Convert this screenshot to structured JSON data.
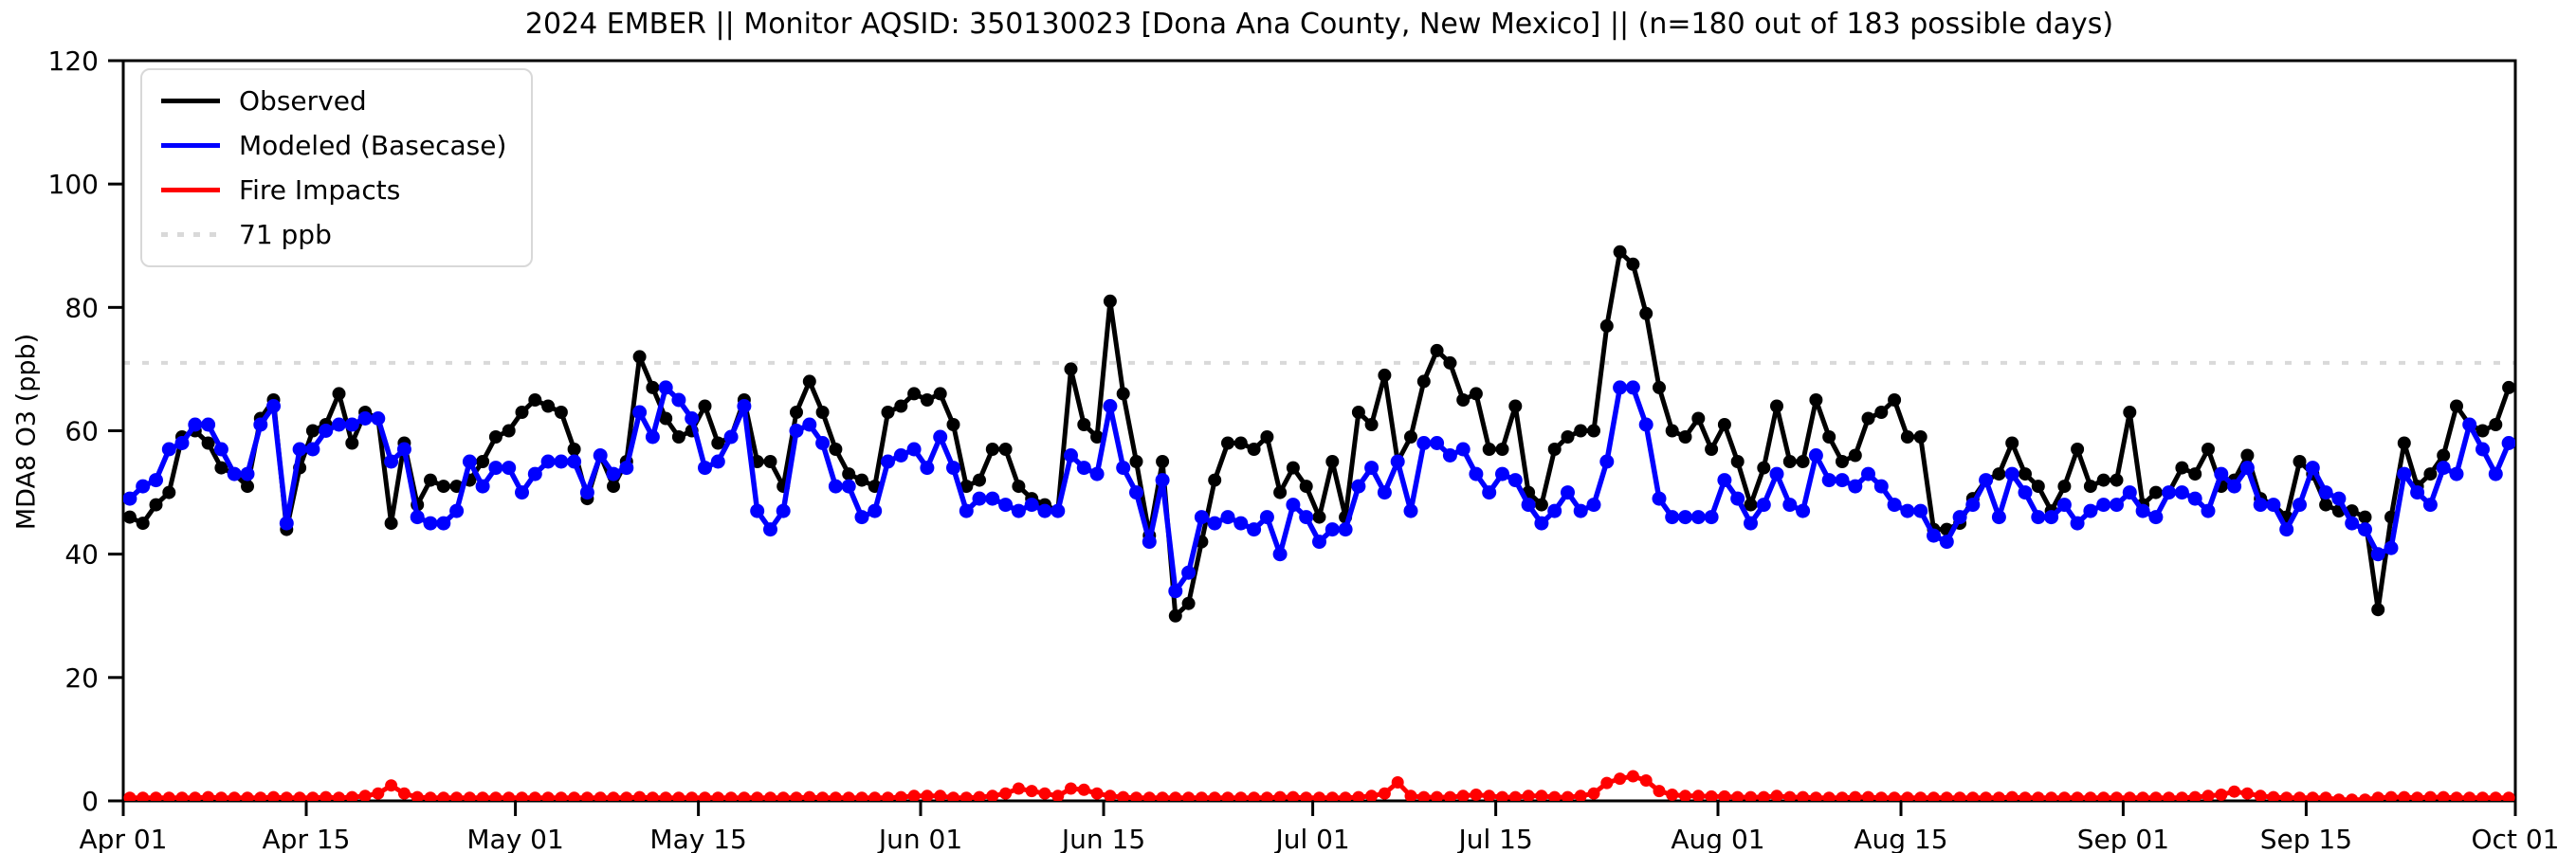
{
  "title": "2024 EMBER || Monitor AQSID: 350130023 [Dona Ana County, New Mexico] || (n=180 out of 183 possible days)",
  "y_axis": {
    "label": "MDA8 O3 (ppb)",
    "ticks": [
      0,
      20,
      40,
      60,
      80,
      100,
      120
    ],
    "min": 0,
    "max": 120
  },
  "x_axis": {
    "ticks": [
      {
        "label": "Apr 01",
        "day": 0
      },
      {
        "label": "Apr 15",
        "day": 14
      },
      {
        "label": "May 01",
        "day": 30
      },
      {
        "label": "May 15",
        "day": 44
      },
      {
        "label": "Jun 01",
        "day": 61
      },
      {
        "label": "Jun 15",
        "day": 75
      },
      {
        "label": "Jul 01",
        "day": 91
      },
      {
        "label": "Jul 15",
        "day": 105
      },
      {
        "label": "Aug 01",
        "day": 122
      },
      {
        "label": "Aug 15",
        "day": 136
      },
      {
        "label": "Sep 01",
        "day": 153
      },
      {
        "label": "Sep 15",
        "day": 167
      },
      {
        "label": "Oct 01",
        "day": 183
      }
    ],
    "range_days": 183
  },
  "legend": [
    {
      "label": "Observed",
      "color": "#000000",
      "style": "solid"
    },
    {
      "label": "Modeled (Basecase)",
      "color": "#0000ff",
      "style": "solid"
    },
    {
      "label": "Fire Impacts",
      "color": "#ff0000",
      "style": "solid"
    },
    {
      "label": "71 ppb",
      "color": "#d9d9d9",
      "style": "dotted"
    }
  ],
  "chart_data": {
    "type": "line",
    "title": "2024 EMBER || Monitor AQSID: 350130023 [Dona Ana County, New Mexico] || (n=180 out of 183 possible days)",
    "xlabel": "",
    "ylabel": "MDA8 O3 (ppb)",
    "ylim": [
      0,
      120
    ],
    "x_start_date": "Apr 01",
    "x_end_date": "Oct 01",
    "x_unit": "day",
    "threshold_line": {
      "value": 71,
      "label": "71 ppb",
      "color": "#d9d9d9",
      "style": "dotted"
    },
    "grid": false,
    "legend_position": "upper-left",
    "series": [
      {
        "name": "Observed",
        "color": "#000000",
        "values": [
          46,
          45,
          48,
          50,
          59,
          60,
          58,
          54,
          53,
          51,
          62,
          65,
          44,
          54,
          60,
          61,
          66,
          58,
          63,
          62,
          45,
          58,
          48,
          52,
          51,
          51,
          52,
          55,
          59,
          60,
          63,
          65,
          64,
          63,
          57,
          49,
          56,
          51,
          55,
          72,
          67,
          62,
          59,
          60,
          64,
          58,
          59,
          65,
          55,
          55,
          51,
          63,
          68,
          63,
          57,
          53,
          52,
          51,
          63,
          64,
          66,
          65,
          66,
          61,
          51,
          52,
          57,
          57,
          51,
          49,
          48,
          47,
          70,
          61,
          59,
          81,
          66,
          55,
          43,
          55,
          30,
          32,
          42,
          52,
          58,
          58,
          57,
          59,
          50,
          54,
          51,
          46,
          55,
          46,
          63,
          61,
          69,
          55,
          59,
          68,
          73,
          71,
          65,
          66,
          57,
          57,
          64,
          50,
          48,
          57,
          59,
          60,
          60,
          77,
          89,
          87,
          79,
          67,
          60,
          59,
          62,
          57,
          61,
          55,
          48,
          54,
          64,
          55,
          55,
          65,
          59,
          55,
          56,
          62,
          63,
          65,
          59,
          59,
          44,
          44,
          45,
          49,
          52,
          53,
          58,
          53,
          51,
          47,
          51,
          57,
          51,
          52,
          52,
          63,
          48,
          50,
          50,
          54,
          53,
          57,
          51,
          52,
          56,
          49,
          48,
          46,
          55,
          53,
          48,
          47,
          47,
          46,
          31,
          46,
          58,
          51,
          53,
          56,
          64,
          61,
          60,
          61,
          67
        ]
      },
      {
        "name": "Modeled (Basecase)",
        "color": "#0000ff",
        "values": [
          49,
          51,
          52,
          57,
          58,
          61,
          61,
          57,
          53,
          53,
          61,
          64,
          45,
          57,
          57,
          60,
          61,
          61,
          62,
          62,
          55,
          57,
          46,
          45,
          45,
          47,
          55,
          51,
          54,
          54,
          50,
          53,
          55,
          55,
          55,
          50,
          56,
          53,
          54,
          63,
          59,
          67,
          65,
          62,
          54,
          55,
          59,
          64,
          47,
          44,
          47,
          60,
          61,
          58,
          51,
          51,
          46,
          47,
          55,
          56,
          57,
          54,
          59,
          54,
          47,
          49,
          49,
          48,
          47,
          48,
          47,
          47,
          56,
          54,
          53,
          64,
          54,
          50,
          42,
          52,
          34,
          37,
          46,
          45,
          46,
          45,
          44,
          46,
          40,
          48,
          46,
          42,
          44,
          44,
          51,
          54,
          50,
          55,
          47,
          58,
          58,
          56,
          57,
          53,
          50,
          53,
          52,
          48,
          45,
          47,
          50,
          47,
          48,
          55,
          67,
          67,
          61,
          49,
          46,
          46,
          46,
          46,
          52,
          49,
          45,
          48,
          53,
          48,
          47,
          56,
          52,
          52,
          51,
          53,
          51,
          48,
          47,
          47,
          43,
          42,
          46,
          48,
          52,
          46,
          53,
          50,
          46,
          46,
          48,
          45,
          47,
          48,
          48,
          50,
          47,
          46,
          50,
          50,
          49,
          47,
          53,
          51,
          54,
          48,
          48,
          44,
          48,
          54,
          50,
          49,
          45,
          44,
          40,
          41,
          53,
          50,
          48,
          54,
          53,
          61,
          57,
          53,
          58
        ]
      },
      {
        "name": "Fire Impacts",
        "color": "#ff0000",
        "values": [
          0.5,
          0.5,
          0.5,
          0.5,
          0.5,
          0.5,
          0.6,
          0.5,
          0.5,
          0.5,
          0.5,
          0.6,
          0.5,
          0.5,
          0.5,
          0.6,
          0.5,
          0.6,
          0.8,
          1.2,
          2.5,
          1.2,
          0.6,
          0.5,
          0.5,
          0.5,
          0.5,
          0.5,
          0.5,
          0.5,
          0.5,
          0.5,
          0.5,
          0.5,
          0.5,
          0.5,
          0.5,
          0.5,
          0.5,
          0.6,
          0.5,
          0.5,
          0.5,
          0.5,
          0.5,
          0.5,
          0.5,
          0.5,
          0.5,
          0.5,
          0.5,
          0.5,
          0.6,
          0.5,
          0.5,
          0.5,
          0.5,
          0.5,
          0.5,
          0.6,
          0.8,
          0.8,
          0.8,
          0.5,
          0.5,
          0.6,
          0.8,
          1.2,
          2.0,
          1.6,
          1.2,
          0.8,
          2.0,
          1.8,
          1.2,
          0.8,
          0.6,
          0.5,
          0.5,
          0.5,
          0.5,
          0.5,
          0.5,
          0.5,
          0.5,
          0.5,
          0.5,
          0.5,
          0.6,
          0.6,
          0.5,
          0.5,
          0.5,
          0.5,
          0.6,
          0.8,
          1.2,
          3.0,
          0.8,
          0.6,
          0.6,
          0.6,
          0.8,
          1.0,
          0.8,
          0.6,
          0.6,
          0.8,
          0.8,
          0.6,
          0.6,
          0.8,
          1.2,
          2.9,
          3.6,
          4.0,
          3.3,
          1.6,
          1.0,
          0.8,
          0.8,
          0.7,
          0.7,
          0.6,
          0.6,
          0.6,
          0.8,
          0.6,
          0.6,
          0.5,
          0.5,
          0.5,
          0.6,
          0.6,
          0.5,
          0.5,
          0.5,
          0.5,
          0.5,
          0.5,
          0.5,
          0.5,
          0.5,
          0.5,
          0.6,
          0.5,
          0.5,
          0.5,
          0.5,
          0.5,
          0.5,
          0.5,
          0.5,
          0.5,
          0.5,
          0.5,
          0.5,
          0.5,
          0.6,
          0.8,
          1.0,
          1.5,
          1.2,
          0.8,
          0.6,
          0.5,
          0.5,
          0.5,
          0.5,
          0.2,
          0.2,
          0.2,
          0.5,
          0.6,
          0.6,
          0.5,
          0.6,
          0.6,
          0.5,
          0.5,
          0.5,
          0.5,
          0.5
        ]
      }
    ]
  },
  "style": {
    "background": "#ffffff",
    "spine_color": "#000000",
    "threshold_color": "#d9d9d9"
  }
}
